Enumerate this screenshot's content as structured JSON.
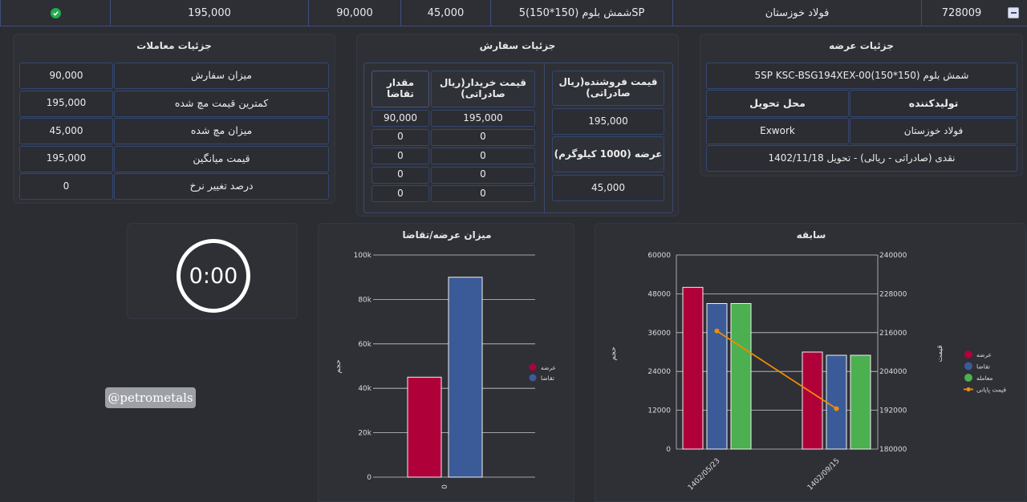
{
  "top_row": {
    "id": "728009",
    "producer": "فولاد خوزستان",
    "product": "شمش بلوم (150*150)5SP",
    "supply": "45,000",
    "order": "90,000",
    "price": "195,000"
  },
  "offer_details": {
    "title": "جزئیات عرضه",
    "symbol": "5SP KSC-BSG194XEX-00(150*150) شمش بلوم",
    "producer_header": "تولیدکننده",
    "delivery_header": "محل تحویل",
    "producer_value": "فولاد خوزستان",
    "delivery_value": "Exwork",
    "terms": "نقدی (صادراتی - ریالی) - تحویل 1402/11/18"
  },
  "order_details": {
    "title": "جزئیات سفارش",
    "seller_price_header": "قیمت فروشنده(ریال صادراتی)",
    "seller_price_value": "195,000",
    "supply_header": "عرضه (1000 کیلوگرم)",
    "supply_value": "45,000",
    "buyer_price_header": "قیمت خریدار(ریال صادراتی)",
    "demand_qty_header": "مقدار تقاضا",
    "rows": [
      {
        "price": "195,000",
        "qty": "90,000"
      },
      {
        "price": "0",
        "qty": "0"
      },
      {
        "price": "0",
        "qty": "0"
      },
      {
        "price": "0",
        "qty": "0"
      },
      {
        "price": "0",
        "qty": "0"
      }
    ]
  },
  "trade_details": {
    "title": "جزئیات معاملات",
    "rows": [
      {
        "label": "میزان سفارش",
        "value": "90,000"
      },
      {
        "label": "کمترین قیمت مچ شده",
        "value": "195,000"
      },
      {
        "label": "میزان مچ شده",
        "value": "45,000"
      },
      {
        "label": "قیمت میانگین",
        "value": "195,000"
      },
      {
        "label": "درصد تغییر نرخ",
        "value": "0"
      }
    ]
  },
  "timer": {
    "value": "0:00"
  },
  "watermark": "@petrometals",
  "colors": {
    "supply": "#b0003a",
    "demand": "#3b5b98",
    "trade": "#4caf50",
    "final_price": "#f08c00"
  },
  "chart_data": [
    {
      "type": "bar",
      "title": "میزان عرضه/تقاضا",
      "ylabel": "حجم",
      "categories": [
        "0"
      ],
      "y_ticks": [
        "0",
        "20k",
        "40k",
        "60k",
        "80k",
        "100k"
      ],
      "ylim": [
        0,
        100000
      ],
      "series": [
        {
          "name": "عرضه",
          "values": [
            45000
          ]
        },
        {
          "name": "تقاضا",
          "values": [
            90000
          ]
        }
      ],
      "legend": "right"
    },
    {
      "type": "bar",
      "title": "سابقه",
      "ylabel": "حجم",
      "y2label": "قیمت",
      "categories": [
        "1402/05/23",
        "1402/09/15"
      ],
      "ylim": [
        0,
        60000
      ],
      "y2lim": [
        180000,
        240000
      ],
      "y_ticks": [
        "0",
        "12000",
        "24000",
        "36000",
        "48000",
        "60000"
      ],
      "y2_ticks": [
        "180000",
        "192000",
        "204000",
        "216000",
        "228000",
        "240000"
      ],
      "series": [
        {
          "name": "عرضه",
          "values": [
            50000,
            30000
          ]
        },
        {
          "name": "تقاضا",
          "values": [
            45000,
            29000
          ]
        },
        {
          "name": "معامله",
          "values": [
            45000,
            29000
          ]
        }
      ],
      "line_series": {
        "name": "قیمت پایانی",
        "values": [
          216500,
          192500
        ],
        "axis": "right"
      },
      "legend": "right"
    }
  ]
}
